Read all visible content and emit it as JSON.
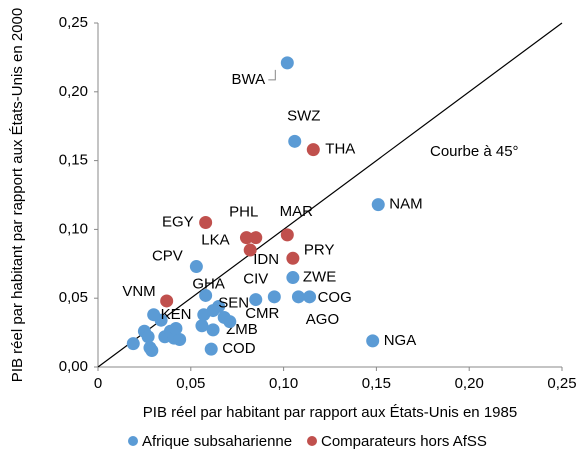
{
  "chart_data": {
    "type": "scatter",
    "xlabel": "PIB réel par habitant par rapport aux États-Unis en 1985",
    "ylabel": "PIB réel par habitant par rapport aux États-Unis en 2000",
    "annotation": "Courbe à 45°",
    "xlim": [
      0,
      0.25
    ],
    "ylim": [
      0,
      0.25
    ],
    "xticks": [
      0,
      {
        "value": 0.05,
        "label": "0,05"
      },
      {
        "value": 0.1,
        "label": "0,10"
      },
      {
        "value": 0.15,
        "label": "0,15"
      },
      {
        "value": 0.2,
        "label": "0,20"
      },
      {
        "value": 0.25,
        "label": "0,25"
      }
    ],
    "yticks": [
      {
        "value": 0,
        "label": "0,00"
      },
      {
        "value": 0.05,
        "label": "0,05"
      },
      {
        "value": 0.1,
        "label": "0,10"
      },
      {
        "value": 0.15,
        "label": "0,15"
      },
      {
        "value": 0.2,
        "label": "0,20"
      },
      {
        "value": 0.25,
        "label": "0,25"
      }
    ],
    "legend": "bottom",
    "series": [
      {
        "name": "Afrique subsaharienne",
        "color": "#5b9bd5",
        "x": [
          0.102,
          0.106,
          0.151,
          0.053,
          0.105,
          0.058,
          0.085,
          0.095,
          0.114,
          0.108,
          0.148,
          0.065,
          0.034,
          0.062,
          0.061,
          0.019,
          0.025,
          0.027,
          0.028,
          0.029,
          0.03,
          0.036,
          0.039,
          0.041,
          0.044,
          0.042,
          0.056,
          0.057,
          0.068,
          0.071,
          0.062
        ],
        "values": [
          0.221,
          0.164,
          0.118,
          0.073,
          0.065,
          0.052,
          0.049,
          0.051,
          0.051,
          0.051,
          0.019,
          0.044,
          0.034,
          0.027,
          0.013,
          0.017,
          0.026,
          0.022,
          0.014,
          0.012,
          0.038,
          0.022,
          0.026,
          0.021,
          0.02,
          0.028,
          0.03,
          0.038,
          0.036,
          0.033,
          0.041
        ],
        "labels": [
          "BWA",
          "SWZ",
          "NAM",
          "CPV",
          "ZWE",
          "GHA",
          "CIV",
          "CMR",
          "COG",
          "AGO",
          "NGA",
          "SEN",
          "KEN",
          "ZMB",
          "COD",
          null,
          null,
          null,
          null,
          null,
          null,
          null,
          null,
          null,
          null,
          null,
          null,
          null,
          null,
          null,
          null
        ]
      },
      {
        "name": "Comparateurs hors AfSS",
        "color": "#c0504d",
        "x": [
          0.058,
          0.085,
          0.08,
          0.082,
          0.102,
          0.105,
          0.116,
          0.037
        ],
        "values": [
          0.105,
          0.094,
          0.094,
          0.085,
          0.096,
          0.079,
          0.158,
          0.048
        ],
        "labels": [
          "EGY",
          "PHL",
          "LKA",
          "IDN",
          "MAR",
          "PRY",
          "THA",
          "VNM"
        ]
      }
    ]
  }
}
